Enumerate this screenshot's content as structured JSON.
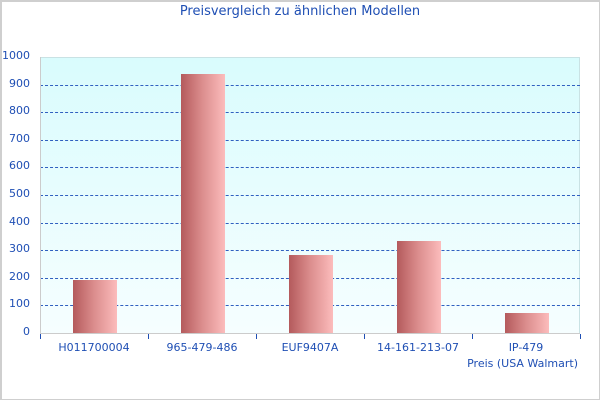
{
  "chart_data": {
    "type": "bar",
    "title": "Preisvergleich zu ähnlichen Modellen",
    "xlabel": "Preis (USA Walmart)",
    "ylabel": "",
    "categories": [
      "H011700004",
      "965-479-486",
      "EUF9407A",
      "14-161-213-07",
      "IP-479"
    ],
    "series": [
      {
        "name": "Preis (USA Walmart)",
        "values": [
          192,
          938,
          283,
          333,
          72
        ]
      }
    ],
    "ylim": [
      0,
      1000
    ],
    "yticks": [
      "0",
      "100",
      "200",
      "300",
      "400",
      "500",
      "600",
      "700",
      "800",
      "900",
      "1000"
    ],
    "grid": true,
    "legend_position": "none",
    "colors": {
      "bar_dark": "#b45a5c",
      "bar_light": "#fcbcbc",
      "grid": "#3060c0",
      "text": "#1f4fb4",
      "plot_bg_top": "#d9fcfd"
    }
  }
}
